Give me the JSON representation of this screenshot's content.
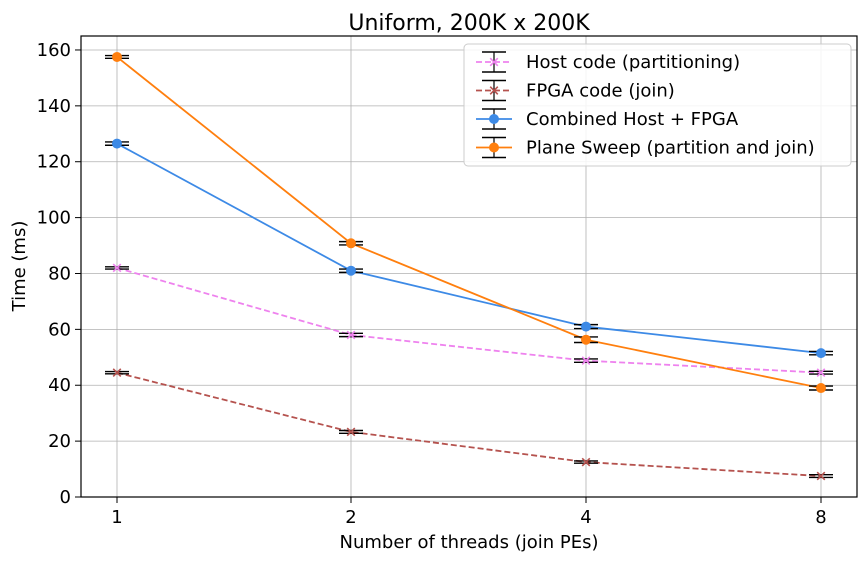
{
  "chart_data": {
    "type": "line",
    "title": "Uniform, 200K x 200K",
    "xlabel": "Number of threads (join PEs)",
    "ylabel": "Time (ms)",
    "categories": [
      "1",
      "2",
      "4",
      "8"
    ],
    "ylim": [
      0,
      165
    ],
    "yticks": [
      0,
      20,
      40,
      60,
      80,
      100,
      120,
      140,
      160
    ],
    "grid": true,
    "legend_position": "top-right",
    "series": [
      {
        "name": "Host code (partitioning)",
        "values": [
          82,
          58,
          48.8,
          44.5
        ],
        "errors": [
          0.4,
          0.6,
          0.6,
          0.5
        ],
        "color": "#ee82ee",
        "linestyle": "dashed",
        "marker": "x"
      },
      {
        "name": "FPGA code (join)",
        "values": [
          44.5,
          23.3,
          12.5,
          7.5
        ],
        "errors": [
          0.4,
          0.5,
          0.4,
          0.5
        ],
        "color": "#b5524e",
        "linestyle": "dashed",
        "marker": "x"
      },
      {
        "name": "Combined Host + FPGA",
        "values": [
          126.5,
          81,
          61,
          51.5
        ],
        "errors": [
          0.6,
          0.6,
          0.7,
          0.6
        ],
        "color": "#3d8ae6",
        "linestyle": "solid",
        "marker": "o"
      },
      {
        "name": "Plane Sweep (partition and join)",
        "values": [
          157.5,
          90.8,
          56.3,
          39
        ],
        "errors": [
          0.5,
          0.6,
          1.0,
          0.7
        ],
        "color": "#ff7f0e",
        "linestyle": "solid",
        "marker": "o"
      }
    ]
  }
}
